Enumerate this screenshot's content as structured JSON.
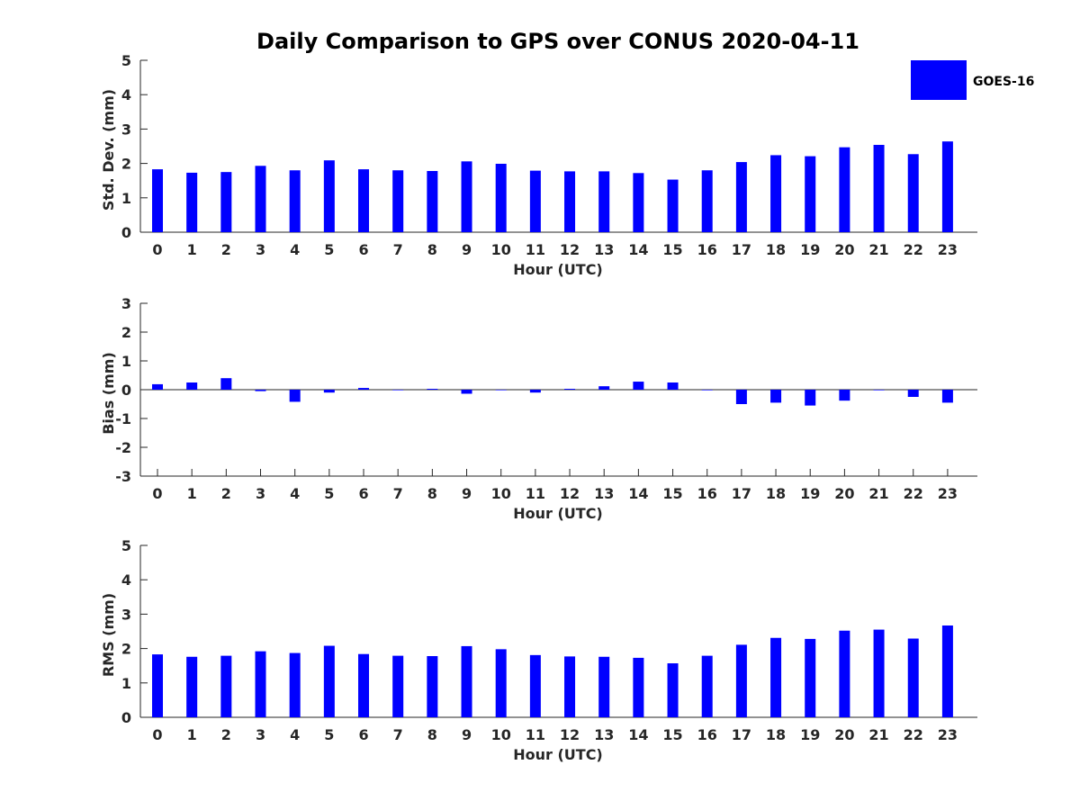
{
  "chart_data": {
    "title": "Daily Comparison to GPS over CONUS 2020-04-11",
    "legend": {
      "label": "GOES-16",
      "color": "#0000ff",
      "position": "top-right"
    },
    "panels": [
      {
        "type": "bar",
        "xlabel": "Hour (UTC)",
        "ylabel": "Std. Dev. (mm)",
        "ylim": [
          0,
          5
        ],
        "yticks": [
          "0",
          "1",
          "2",
          "3",
          "4",
          "5"
        ],
        "categories": [
          "0",
          "1",
          "2",
          "3",
          "4",
          "5",
          "6",
          "7",
          "8",
          "9",
          "10",
          "11",
          "12",
          "13",
          "14",
          "15",
          "16",
          "17",
          "18",
          "19",
          "20",
          "21",
          "22",
          "23"
        ],
        "series": [
          {
            "name": "GOES-16",
            "color": "#0000ff",
            "values": [
              1.83,
              1.73,
              1.75,
              1.93,
              1.8,
              2.09,
              1.83,
              1.8,
              1.78,
              2.06,
              1.99,
              1.79,
              1.77,
              1.77,
              1.72,
              1.53,
              1.8,
              2.04,
              2.24,
              2.21,
              2.47,
              2.54,
              2.27,
              2.64
            ]
          }
        ]
      },
      {
        "type": "bar",
        "xlabel": "Hour (UTC)",
        "ylabel": "Bias (mm)",
        "ylim": [
          -3,
          3
        ],
        "yticks": [
          "-3",
          "-2",
          "-1",
          "0",
          "1",
          "2",
          "3"
        ],
        "categories": [
          "0",
          "1",
          "2",
          "3",
          "4",
          "5",
          "6",
          "7",
          "8",
          "9",
          "10",
          "11",
          "12",
          "13",
          "14",
          "15",
          "16",
          "17",
          "18",
          "19",
          "20",
          "21",
          "22",
          "23"
        ],
        "series": [
          {
            "name": "GOES-16",
            "color": "#0000ff",
            "values": [
              0.19,
              0.25,
              0.4,
              -0.05,
              -0.42,
              -0.1,
              0.06,
              -0.01,
              0.03,
              -0.14,
              -0.01,
              -0.1,
              0.03,
              0.12,
              0.28,
              0.25,
              -0.02,
              -0.5,
              -0.45,
              -0.55,
              -0.38,
              -0.02,
              -0.25,
              -0.45
            ]
          }
        ]
      },
      {
        "type": "bar",
        "xlabel": "Hour (UTC)",
        "ylabel": "RMS (mm)",
        "ylim": [
          0,
          5
        ],
        "yticks": [
          "0",
          "1",
          "2",
          "3",
          "4",
          "5"
        ],
        "categories": [
          "0",
          "1",
          "2",
          "3",
          "4",
          "5",
          "6",
          "7",
          "8",
          "9",
          "10",
          "11",
          "12",
          "13",
          "14",
          "15",
          "16",
          "17",
          "18",
          "19",
          "20",
          "21",
          "22",
          "23"
        ],
        "series": [
          {
            "name": "GOES-16",
            "color": "#0000ff",
            "values": [
              1.83,
              1.76,
              1.79,
              1.92,
              1.87,
              2.08,
              1.84,
              1.79,
              1.78,
              2.07,
              1.98,
              1.81,
              1.77,
              1.76,
              1.73,
              1.57,
              1.79,
              2.11,
              2.31,
              2.28,
              2.52,
              2.55,
              2.29,
              2.67
            ]
          }
        ]
      }
    ]
  }
}
